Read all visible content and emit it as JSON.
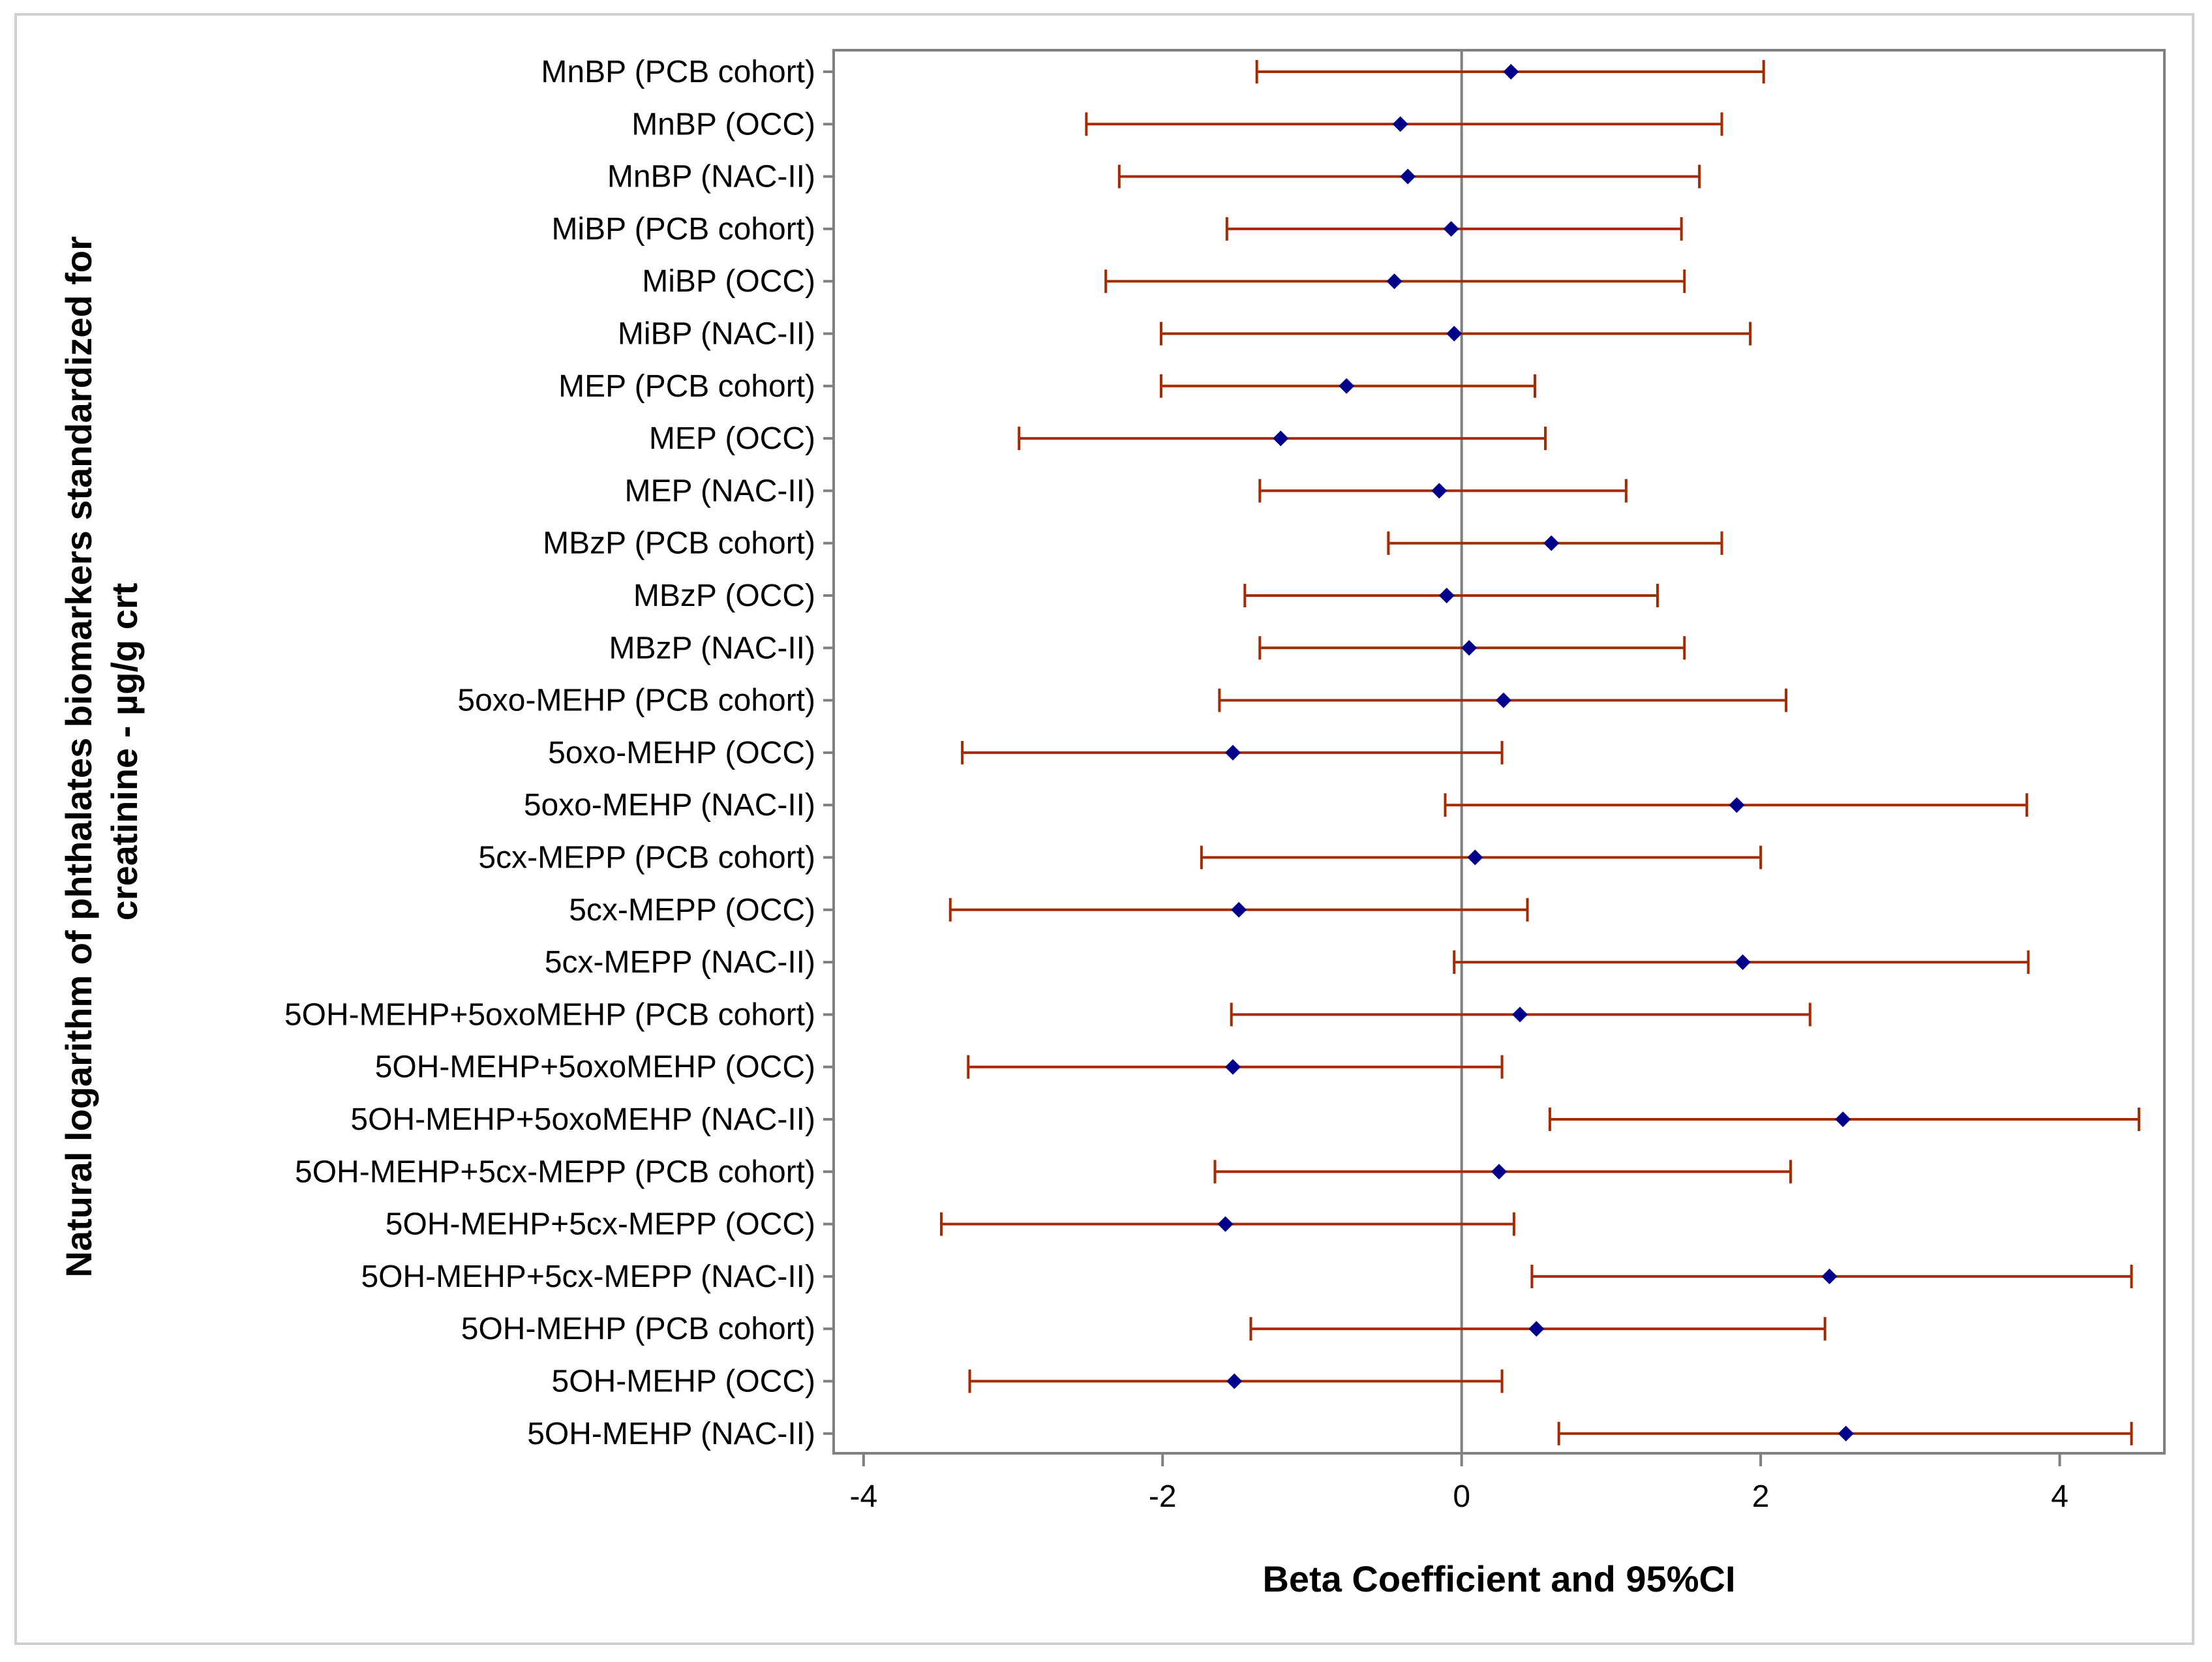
{
  "chart_data": {
    "type": "forest",
    "xlabel": "Beta Coefficient and 95%CI",
    "ylabel_lines": [
      "Natural logarithm of phthalates biomarkers standardized for",
      "creatinine - µg/g crt"
    ],
    "xlim": [
      -4.2,
      4.7
    ],
    "xticks": [
      -4,
      -2,
      0,
      2,
      4
    ],
    "reference_line": 0,
    "colors": {
      "point": "#00008b",
      "ci": "#a52a00",
      "axis": "#808080",
      "refline": "#808080"
    },
    "rows": [
      {
        "label": "MnBP (PCB cohort)",
        "estimate": 0.33,
        "lower": -1.37,
        "upper": 2.02
      },
      {
        "label": "MnBP (OCC)",
        "estimate": -0.41,
        "lower": -2.51,
        "upper": 1.74
      },
      {
        "label": "MnBP (NAC-II)",
        "estimate": -0.36,
        "lower": -2.29,
        "upper": 1.59
      },
      {
        "label": "MiBP (PCB cohort)",
        "estimate": -0.07,
        "lower": -1.57,
        "upper": 1.47
      },
      {
        "label": "MiBP (OCC)",
        "estimate": -0.45,
        "lower": -2.38,
        "upper": 1.49
      },
      {
        "label": "MiBP (NAC-II)",
        "estimate": -0.05,
        "lower": -2.01,
        "upper": 1.93
      },
      {
        "label": "MEP (PCB cohort)",
        "estimate": -0.77,
        "lower": -2.01,
        "upper": 0.49
      },
      {
        "label": "MEP (OCC)",
        "estimate": -1.21,
        "lower": -2.96,
        "upper": 0.56
      },
      {
        "label": "MEP (NAC-II)",
        "estimate": -0.15,
        "lower": -1.35,
        "upper": 1.1
      },
      {
        "label": "MBzP (PCB cohort)",
        "estimate": 0.6,
        "lower": -0.49,
        "upper": 1.74
      },
      {
        "label": "MBzP (OCC)",
        "estimate": -0.1,
        "lower": -1.45,
        "upper": 1.31
      },
      {
        "label": "MBzP (NAC-II)",
        "estimate": 0.05,
        "lower": -1.35,
        "upper": 1.49
      },
      {
        "label": "5oxo-MEHP (PCB cohort)",
        "estimate": 0.28,
        "lower": -1.62,
        "upper": 2.17
      },
      {
        "label": "5oxo-MEHP (OCC)",
        "estimate": -1.53,
        "lower": -3.34,
        "upper": 0.27
      },
      {
        "label": "5oxo-MEHP (NAC-II)",
        "estimate": 1.84,
        "lower": -0.11,
        "upper": 3.78
      },
      {
        "label": "5cx-MEPP (PCB cohort)",
        "estimate": 0.09,
        "lower": -1.74,
        "upper": 2.0
      },
      {
        "label": "5cx-MEPP (OCC)",
        "estimate": -1.49,
        "lower": -3.42,
        "upper": 0.44
      },
      {
        "label": "5cx-MEPP (NAC-II)",
        "estimate": 1.88,
        "lower": -0.05,
        "upper": 3.79
      },
      {
        "label": "5OH-MEHP+5oxoMEHP (PCB cohort)",
        "estimate": 0.39,
        "lower": -1.54,
        "upper": 2.33
      },
      {
        "label": "5OH-MEHP+5oxoMEHP (OCC)",
        "estimate": -1.53,
        "lower": -3.3,
        "upper": 0.27
      },
      {
        "label": "5OH-MEHP+5oxoMEHP (NAC-II)",
        "estimate": 2.55,
        "lower": 0.59,
        "upper": 4.53
      },
      {
        "label": "5OH-MEHP+5cx-MEPP (PCB cohort)",
        "estimate": 0.25,
        "lower": -1.65,
        "upper": 2.2
      },
      {
        "label": "5OH-MEHP+5cx-MEPP (OCC)",
        "estimate": -1.58,
        "lower": -3.48,
        "upper": 0.35
      },
      {
        "label": "5OH-MEHP+5cx-MEPP (NAC-II)",
        "estimate": 2.46,
        "lower": 0.47,
        "upper": 4.48
      },
      {
        "label": "5OH-MEHP (PCB cohort)",
        "estimate": 0.5,
        "lower": -1.41,
        "upper": 2.43
      },
      {
        "label": "5OH-MEHP (OCC)",
        "estimate": -1.52,
        "lower": -3.29,
        "upper": 0.27
      },
      {
        "label": "5OH-MEHP (NAC-II)",
        "estimate": 2.57,
        "lower": 0.65,
        "upper": 4.48
      }
    ]
  }
}
